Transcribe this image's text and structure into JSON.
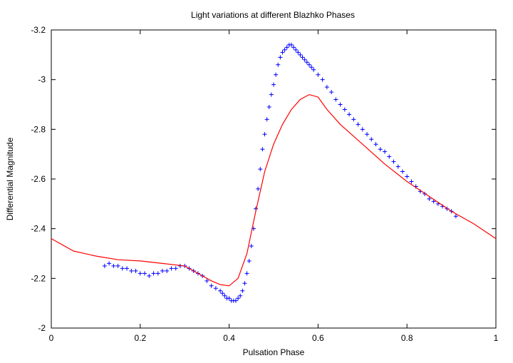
{
  "chart_data": {
    "type": "scatter",
    "title": "Light variations at different Blazhko Phases",
    "xlabel": "Pulsation Phase",
    "ylabel": "Differential Magnitude",
    "xlim": [
      0,
      1
    ],
    "ylim": [
      -2,
      -3.2
    ],
    "y_inverted": true,
    "grid": false,
    "x_ticks": [
      {
        "value": 0,
        "label": "0"
      },
      {
        "value": 0.2,
        "label": "0.2"
      },
      {
        "value": 0.4,
        "label": "0.4"
      },
      {
        "value": 0.6,
        "label": "0.6"
      },
      {
        "value": 0.8,
        "label": "0.8"
      },
      {
        "value": 1,
        "label": "1"
      }
    ],
    "y_ticks": [
      {
        "value": -2,
        "label": "-2"
      },
      {
        "value": -2.2,
        "label": "-2.2"
      },
      {
        "value": -2.4,
        "label": "-2.4"
      },
      {
        "value": -2.6,
        "label": "-2.6"
      },
      {
        "value": -2.8,
        "label": "-2.8"
      },
      {
        "value": -3,
        "label": "-3"
      },
      {
        "value": -3.2,
        "label": "-3.2"
      }
    ],
    "series": [
      {
        "kind": "points",
        "marker": "plus",
        "color": "#0000ff",
        "x": [
          0.12,
          0.13,
          0.14,
          0.15,
          0.16,
          0.17,
          0.18,
          0.19,
          0.2,
          0.21,
          0.22,
          0.23,
          0.24,
          0.25,
          0.26,
          0.27,
          0.28,
          0.29,
          0.3,
          0.31,
          0.32,
          0.33,
          0.34,
          0.35,
          0.36,
          0.37,
          0.38,
          0.385,
          0.39,
          0.395,
          0.4,
          0.405,
          0.41,
          0.415,
          0.42,
          0.425,
          0.43,
          0.435,
          0.44,
          0.445,
          0.45,
          0.455,
          0.46,
          0.465,
          0.47,
          0.475,
          0.48,
          0.485,
          0.49,
          0.495,
          0.5,
          0.505,
          0.51,
          0.515,
          0.52,
          0.525,
          0.53,
          0.535,
          0.54,
          0.545,
          0.55,
          0.555,
          0.56,
          0.565,
          0.57,
          0.575,
          0.58,
          0.585,
          0.59,
          0.6,
          0.61,
          0.62,
          0.63,
          0.64,
          0.65,
          0.66,
          0.67,
          0.68,
          0.69,
          0.7,
          0.71,
          0.72,
          0.73,
          0.74,
          0.75,
          0.76,
          0.77,
          0.78,
          0.79,
          0.8,
          0.81,
          0.82,
          0.83,
          0.84,
          0.85,
          0.86,
          0.87,
          0.88,
          0.89,
          0.9,
          0.91
        ],
        "y": [
          -2.25,
          -2.26,
          -2.25,
          -2.25,
          -2.24,
          -2.24,
          -2.23,
          -2.23,
          -2.22,
          -2.22,
          -2.21,
          -2.22,
          -2.22,
          -2.23,
          -2.23,
          -2.24,
          -2.24,
          -2.25,
          -2.25,
          -2.24,
          -2.23,
          -2.22,
          -2.21,
          -2.19,
          -2.17,
          -2.16,
          -2.15,
          -2.14,
          -2.13,
          -2.12,
          -2.12,
          -2.11,
          -2.11,
          -2.11,
          -2.12,
          -2.13,
          -2.15,
          -2.18,
          -2.22,
          -2.27,
          -2.33,
          -2.4,
          -2.48,
          -2.56,
          -2.64,
          -2.72,
          -2.78,
          -2.84,
          -2.89,
          -2.94,
          -2.98,
          -3.02,
          -3.06,
          -3.09,
          -3.11,
          -3.12,
          -3.13,
          -3.14,
          -3.14,
          -3.13,
          -3.12,
          -3.11,
          -3.1,
          -3.09,
          -3.08,
          -3.07,
          -3.06,
          -3.05,
          -3.04,
          -3.02,
          -3.0,
          -2.97,
          -2.95,
          -2.92,
          -2.9,
          -2.88,
          -2.86,
          -2.84,
          -2.82,
          -2.8,
          -2.78,
          -2.76,
          -2.74,
          -2.72,
          -2.71,
          -2.69,
          -2.67,
          -2.65,
          -2.63,
          -2.61,
          -2.59,
          -2.57,
          -2.55,
          -2.54,
          -2.52,
          -2.51,
          -2.5,
          -2.49,
          -2.48,
          -2.47,
          -2.45
        ]
      },
      {
        "kind": "line",
        "color": "#ff0000",
        "x": [
          0,
          0.05,
          0.1,
          0.15,
          0.2,
          0.25,
          0.3,
          0.33,
          0.36,
          0.38,
          0.4,
          0.42,
          0.44,
          0.46,
          0.48,
          0.5,
          0.52,
          0.54,
          0.56,
          0.58,
          0.6,
          0.62,
          0.65,
          0.7,
          0.75,
          0.8,
          0.85,
          0.9,
          0.95,
          1.0
        ],
        "y": [
          -2.36,
          -2.31,
          -2.29,
          -2.275,
          -2.27,
          -2.26,
          -2.25,
          -2.22,
          -2.19,
          -2.175,
          -2.17,
          -2.2,
          -2.3,
          -2.47,
          -2.63,
          -2.74,
          -2.82,
          -2.88,
          -2.92,
          -2.94,
          -2.93,
          -2.88,
          -2.82,
          -2.74,
          -2.66,
          -2.59,
          -2.53,
          -2.47,
          -2.42,
          -2.36
        ]
      }
    ]
  }
}
